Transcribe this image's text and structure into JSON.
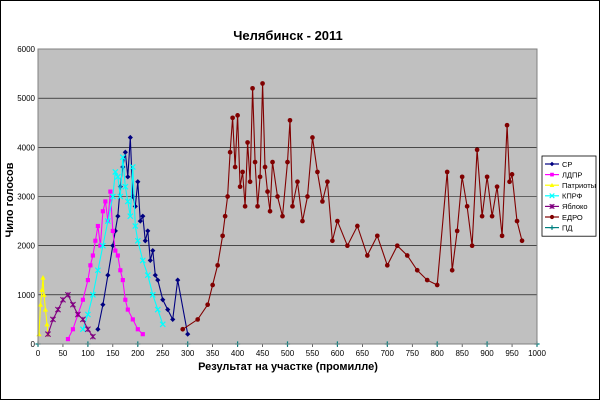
{
  "chart_data": {
    "type": "line",
    "title": "Челябинск - 2011",
    "xlabel": "Результат на участке (промилле)",
    "ylabel": "Чило голосов",
    "xlim": [
      0,
      1000
    ],
    "ylim": [
      0,
      6000
    ],
    "xticks": [
      0,
      50,
      100,
      150,
      200,
      250,
      300,
      350,
      400,
      450,
      500,
      550,
      600,
      650,
      700,
      750,
      800,
      850,
      900,
      950,
      1000
    ],
    "yticks": [
      0,
      1000,
      2000,
      3000,
      4000,
      5000,
      6000
    ],
    "grid": true,
    "legend_position": "right",
    "series": [
      {
        "name": "СР",
        "color": "#000080",
        "marker": "diamond",
        "x": [
          120,
          130,
          140,
          150,
          155,
          160,
          165,
          170,
          175,
          180,
          185,
          190,
          195,
          200,
          205,
          210,
          215,
          220,
          225,
          230,
          235,
          240,
          250,
          260,
          270,
          280,
          300
        ],
        "y": [
          300,
          800,
          1400,
          2000,
          2300,
          2600,
          3200,
          3600,
          3900,
          3400,
          4200,
          3000,
          2800,
          3300,
          2500,
          2600,
          2100,
          2300,
          1700,
          1900,
          1400,
          1300,
          900,
          700,
          500,
          1300,
          200
        ]
      },
      {
        "name": "ЛДПР",
        "color": "#ff00ff",
        "marker": "square",
        "x": [
          60,
          70,
          80,
          90,
          100,
          105,
          110,
          115,
          120,
          125,
          130,
          135,
          140,
          145,
          150,
          155,
          160,
          165,
          170,
          175,
          180,
          190,
          200,
          210
        ],
        "y": [
          100,
          300,
          600,
          900,
          1300,
          1600,
          1800,
          2100,
          2400,
          2000,
          2700,
          2900,
          2500,
          3100,
          2300,
          1900,
          1800,
          1500,
          1300,
          900,
          700,
          500,
          300,
          200
        ]
      },
      {
        "name": "Патриоты",
        "color": "#ffff00",
        "marker": "triangle",
        "x": [
          2,
          5,
          8,
          10,
          12,
          15,
          18,
          20
        ],
        "y": [
          200,
          800,
          1100,
          1350,
          1000,
          700,
          400,
          200
        ]
      },
      {
        "name": "КПРФ",
        "color": "#00ffff",
        "marker": "x",
        "x": [
          90,
          100,
          110,
          120,
          130,
          140,
          150,
          155,
          160,
          165,
          170,
          175,
          180,
          185,
          190,
          195,
          200,
          210,
          220,
          230,
          240,
          250
        ],
        "y": [
          300,
          600,
          1000,
          1500,
          2000,
          2500,
          3000,
          3500,
          3400,
          3000,
          3800,
          3200,
          2900,
          2600,
          3600,
          2400,
          2100,
          1700,
          1400,
          1000,
          700,
          400
        ]
      },
      {
        "name": "Яблоко",
        "color": "#800080",
        "marker": "star",
        "x": [
          20,
          30,
          40,
          50,
          60,
          70,
          80,
          90,
          100,
          110
        ],
        "y": [
          200,
          500,
          700,
          900,
          1000,
          800,
          600,
          500,
          300,
          150
        ]
      },
      {
        "name": "ЕДРО",
        "color": "#800000",
        "marker": "circle",
        "x": [
          290,
          320,
          340,
          350,
          360,
          370,
          375,
          380,
          385,
          390,
          395,
          400,
          405,
          410,
          415,
          420,
          425,
          430,
          435,
          440,
          445,
          450,
          455,
          460,
          465,
          470,
          480,
          490,
          500,
          505,
          510,
          520,
          530,
          540,
          550,
          560,
          570,
          580,
          590,
          600,
          620,
          640,
          660,
          680,
          700,
          720,
          740,
          760,
          780,
          800,
          820,
          830,
          840,
          850,
          860,
          870,
          880,
          890,
          900,
          910,
          920,
          930,
          940,
          945,
          950,
          960,
          970
        ],
        "y": [
          300,
          500,
          800,
          1200,
          1600,
          2200,
          2600,
          3000,
          3900,
          4600,
          3600,
          4650,
          3200,
          3500,
          2800,
          4100,
          3300,
          5200,
          3700,
          2800,
          3400,
          5300,
          3600,
          3100,
          2700,
          3700,
          3000,
          2600,
          3700,
          4550,
          2800,
          3300,
          2500,
          3000,
          4200,
          3500,
          2900,
          3300,
          2100,
          2500,
          2000,
          2400,
          1800,
          2200,
          1600,
          2000,
          1800,
          1500,
          1300,
          1200,
          3500,
          1500,
          2300,
          3400,
          2800,
          2000,
          3950,
          2600,
          3400,
          2600,
          3200,
          2200,
          4450,
          3300,
          3450,
          2500,
          2100
        ]
      },
      {
        "name": "ПД",
        "color": "#008080",
        "marker": "plus",
        "x": [
          0,
          100,
          200,
          300,
          400,
          500,
          600,
          700,
          800,
          900,
          1000
        ],
        "y": [
          0,
          0,
          0,
          0,
          0,
          0,
          0,
          0,
          0,
          0,
          0
        ]
      }
    ]
  }
}
